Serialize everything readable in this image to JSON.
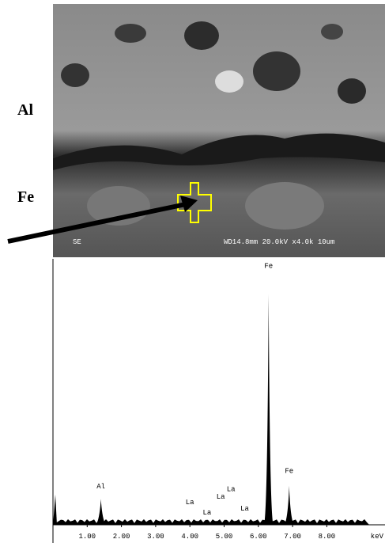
{
  "labels": {
    "top": "Al",
    "bottom": "Fe"
  },
  "sem": {
    "mode": "SE",
    "info": "WD14.8mm 20.0kV x4.0k 10um"
  },
  "chart_data": {
    "type": "spectrum",
    "xlabel": "keV",
    "xlim": [
      0,
      9.7
    ],
    "ylim": [
      0,
      100
    ],
    "xticks": [
      {
        "value": 1,
        "label": "1.00"
      },
      {
        "value": 2,
        "label": "2.00"
      },
      {
        "value": 3,
        "label": "3.00"
      },
      {
        "value": 4,
        "label": "4.00"
      },
      {
        "value": 5,
        "label": "5.00"
      },
      {
        "value": 6,
        "label": "6.00"
      },
      {
        "value": 7,
        "label": "7.00"
      },
      {
        "value": 8,
        "label": "8.00"
      }
    ],
    "peaks": {
      "x": [
        1.4,
        6.3,
        6.9
      ],
      "values": [
        10,
        89,
        15
      ]
    },
    "annotations": [
      {
        "text": "Fe",
        "x": 6.3,
        "y": 99
      },
      {
        "text": "Al",
        "x": 1.4,
        "y": 14
      },
      {
        "text": "Fe",
        "x": 6.9,
        "y": 20
      },
      {
        "text": "La",
        "x": 4.0,
        "y": 8
      },
      {
        "text": "La",
        "x": 4.5,
        "y": 4
      },
      {
        "text": "La",
        "x": 4.9,
        "y": 10
      },
      {
        "text": "La",
        "x": 5.2,
        "y": 13
      },
      {
        "text": "La",
        "x": 5.6,
        "y": 5.5
      }
    ]
  }
}
